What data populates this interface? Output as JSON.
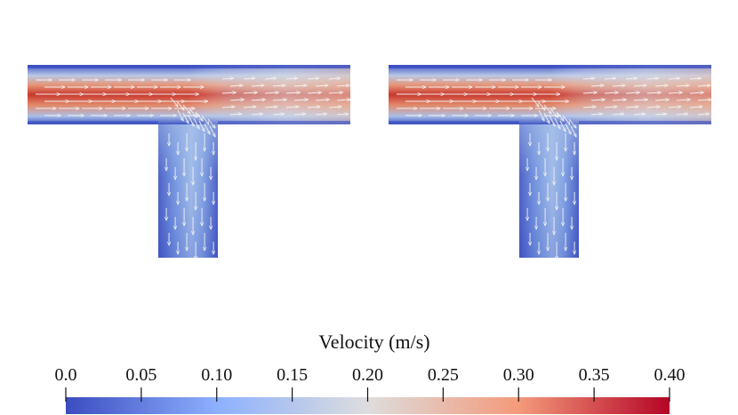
{
  "colorbar": {
    "title": "Velocity (m/s)",
    "ticks": [
      "0.0",
      "0.05",
      "0.10",
      "0.15",
      "0.20",
      "0.25",
      "0.30",
      "0.35",
      "0.40"
    ],
    "range": [
      0.0,
      0.4
    ],
    "colors": {
      "low": "#3b4cc0",
      "low_mid": "#8db0fe",
      "mid": "#dddddd",
      "high_mid": "#f49a7b",
      "high": "#b40426"
    }
  },
  "panels": [
    {
      "name": "t-junction-left",
      "colors": {
        "inlet_core": "#c2392b",
        "wall": "#3b4cc0",
        "outlet_core": "#9db8e6"
      }
    },
    {
      "name": "t-junction-right",
      "colors": {
        "inlet_core": "#c2392b",
        "wall": "#3b4cc0",
        "outlet_core": "#9db8e6"
      }
    }
  ],
  "arrow_color": "#f2f2f2"
}
